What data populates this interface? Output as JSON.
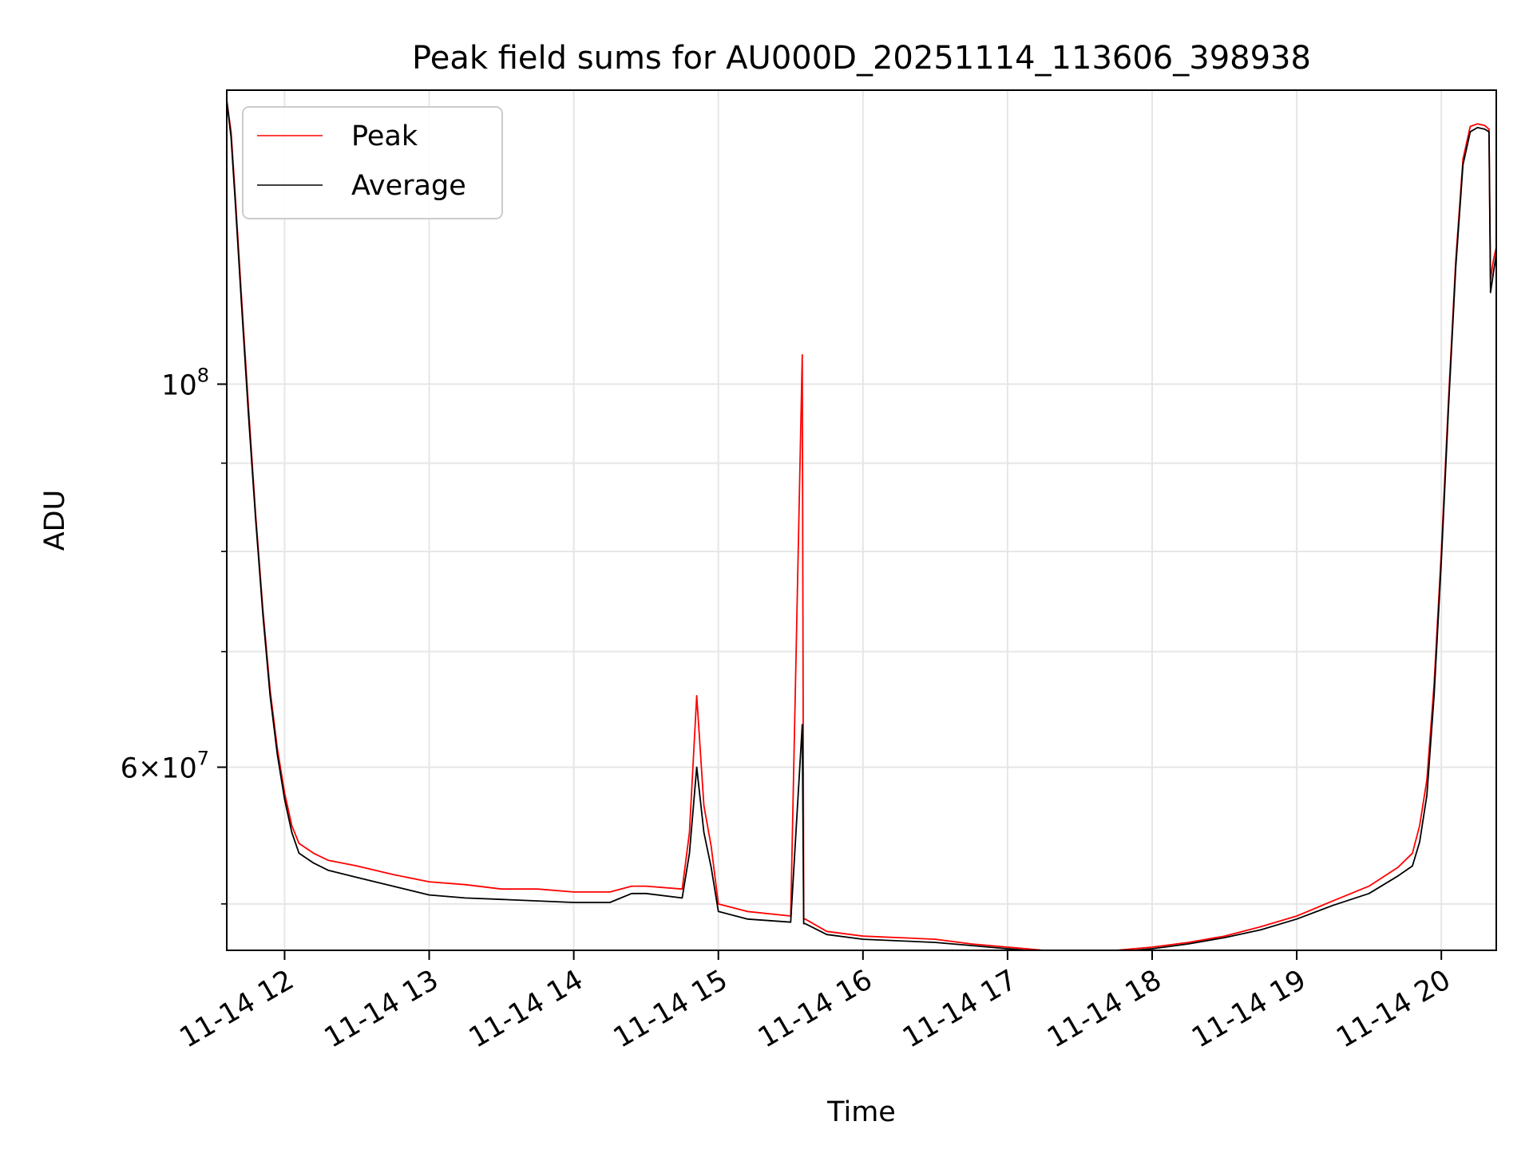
{
  "chart_data": {
    "type": "line",
    "title": "Peak field sums for AU000D_20251114_113606_398938",
    "xlabel": "Time",
    "ylabel": "ADU",
    "yscale": "log",
    "grid": true,
    "legend_position": "top-left",
    "x_ticks": [
      "11-14 12",
      "11-14 13",
      "11-14 14",
      "11-14 15",
      "11-14 16",
      "11-14 17",
      "11-14 18",
      "11-14 19",
      "11-14 20"
    ],
    "x_tick_hours": [
      12,
      13,
      14,
      15,
      16,
      17,
      18,
      19,
      20
    ],
    "xlim_hours": [
      11.6,
      20.38
    ],
    "y_major_ticks": [
      {
        "value": 100000000,
        "label": "10^8"
      },
      {
        "value": 60000000,
        "label": "6×10^7"
      }
    ],
    "y_minor_tick_values": [
      50000000,
      70000000,
      80000000,
      90000000
    ],
    "ylim": [
      47000000,
      148000000
    ],
    "series": [
      {
        "name": "Peak",
        "color": "#ff0000",
        "x_hours": [
          11.6,
          11.63,
          11.66,
          11.7,
          11.75,
          11.8,
          11.85,
          11.9,
          11.95,
          12.0,
          12.05,
          12.1,
          12.2,
          12.3,
          12.5,
          12.75,
          13.0,
          13.25,
          13.5,
          13.75,
          14.0,
          14.25,
          14.4,
          14.5,
          14.75,
          14.8,
          14.85,
          14.9,
          14.95,
          15.0,
          15.2,
          15.5,
          15.58,
          15.59,
          15.6,
          15.75,
          16.0,
          16.25,
          16.5,
          16.75,
          17.0,
          17.25,
          17.5,
          17.75,
          18.0,
          18.25,
          18.5,
          18.75,
          19.0,
          19.25,
          19.5,
          19.7,
          19.8,
          19.85,
          19.9,
          19.95,
          20.0,
          20.05,
          20.1,
          20.15,
          20.2,
          20.25,
          20.3,
          20.33,
          20.34,
          20.36,
          20.38
        ],
        "values": [
          146000000,
          140000000,
          128000000,
          113000000,
          97000000,
          84000000,
          74000000,
          66500000,
          61500000,
          58000000,
          55500000,
          54200000,
          53500000,
          53000000,
          52600000,
          52000000,
          51500000,
          51300000,
          51000000,
          51000000,
          50800000,
          50800000,
          51200000,
          51200000,
          51000000,
          55000000,
          66000000,
          57000000,
          54000000,
          50000000,
          49500000,
          49200000,
          104000000,
          49000000,
          49000000,
          48200000,
          47900000,
          47800000,
          47700000,
          47400000,
          47200000,
          47000000,
          46900000,
          47000000,
          47200000,
          47500000,
          47900000,
          48500000,
          49200000,
          50200000,
          51200000,
          52500000,
          53500000,
          55500000,
          59000000,
          67000000,
          80000000,
          98000000,
          118000000,
          135000000,
          141000000,
          141500000,
          141200000,
          140500000,
          115000000,
          118000000,
          120000000
        ]
      },
      {
        "name": "Average",
        "color": "#000000",
        "x_hours": [
          11.6,
          11.63,
          11.66,
          11.7,
          11.75,
          11.8,
          11.85,
          11.9,
          11.95,
          12.0,
          12.05,
          12.1,
          12.2,
          12.3,
          12.5,
          12.75,
          13.0,
          13.25,
          13.5,
          13.75,
          14.0,
          14.25,
          14.4,
          14.5,
          14.75,
          14.8,
          14.85,
          14.9,
          14.95,
          15.0,
          15.2,
          15.5,
          15.58,
          15.59,
          15.6,
          15.75,
          16.0,
          16.25,
          16.5,
          16.75,
          17.0,
          17.25,
          17.5,
          17.75,
          18.0,
          18.25,
          18.5,
          18.75,
          19.0,
          19.25,
          19.5,
          19.7,
          19.8,
          19.85,
          19.9,
          19.95,
          20.0,
          20.05,
          20.1,
          20.15,
          20.2,
          20.25,
          20.3,
          20.33,
          20.34,
          20.36,
          20.38
        ],
        "values": [
          146000000,
          139000000,
          127000000,
          112000000,
          96000000,
          83500000,
          73500000,
          66000000,
          61000000,
          57500000,
          55000000,
          53500000,
          52800000,
          52300000,
          51800000,
          51200000,
          50600000,
          50400000,
          50300000,
          50200000,
          50100000,
          50100000,
          50700000,
          50700000,
          50400000,
          53500000,
          60000000,
          55000000,
          52500000,
          49500000,
          49000000,
          48800000,
          63500000,
          48700000,
          48700000,
          48000000,
          47700000,
          47600000,
          47500000,
          47300000,
          47100000,
          46900000,
          46800000,
          46900000,
          47100000,
          47400000,
          47800000,
          48300000,
          49000000,
          49900000,
          50700000,
          51900000,
          52600000,
          54300000,
          57800000,
          66000000,
          79000000,
          97000000,
          117000000,
          134000000,
          140000000,
          140800000,
          140500000,
          140000000,
          113000000,
          116000000,
          119000000
        ]
      }
    ]
  }
}
